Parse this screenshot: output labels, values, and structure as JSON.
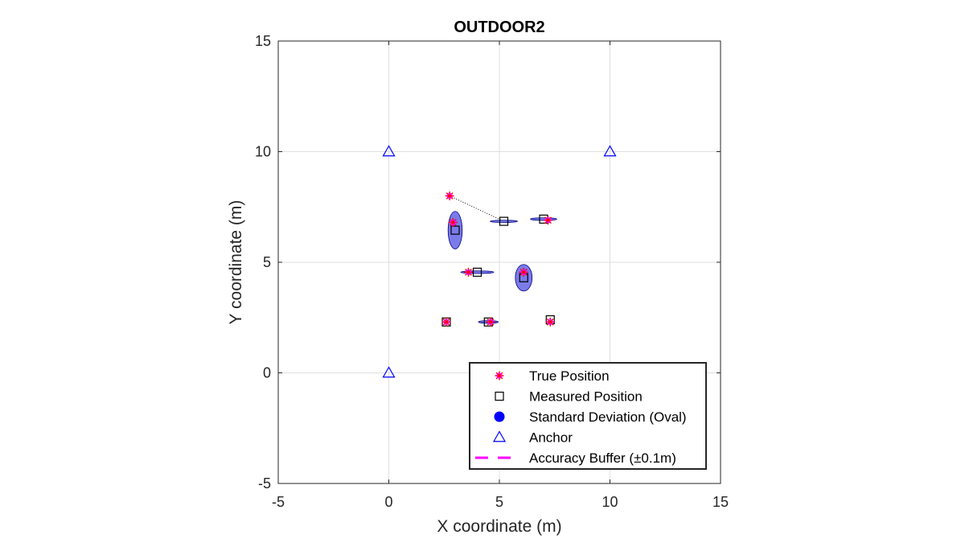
{
  "chart_data": {
    "type": "scatter",
    "title": "OUTDOOR2",
    "xlabel": "X coordinate (m)",
    "ylabel": "Y coordinate (m)",
    "xlim": [
      -5,
      15
    ],
    "ylim": [
      -5,
      15
    ],
    "xticks": [
      -5,
      0,
      5,
      10,
      15
    ],
    "yticks": [
      -5,
      0,
      5,
      10,
      15
    ],
    "grid": true,
    "legend_position": "bottom-right",
    "series": [
      {
        "name": "True Position",
        "marker": "asterisk",
        "color": "#ff0000",
        "points": [
          [
            2.75,
            8.0
          ],
          [
            2.9,
            6.8
          ],
          [
            7.2,
            6.9
          ],
          [
            3.6,
            4.55
          ],
          [
            6.1,
            4.55
          ],
          [
            2.6,
            2.3
          ],
          [
            4.6,
            2.3
          ],
          [
            7.3,
            2.3
          ]
        ]
      },
      {
        "name": "Measured Position",
        "marker": "square",
        "color": "#000000",
        "points": [
          [
            5.2,
            6.85
          ],
          [
            3.0,
            6.45
          ],
          [
            7.0,
            6.95
          ],
          [
            4.0,
            4.55
          ],
          [
            6.1,
            4.3
          ],
          [
            2.6,
            2.3
          ],
          [
            4.5,
            2.3
          ],
          [
            7.3,
            2.4
          ]
        ]
      },
      {
        "name": "Standard Deviation (Oval)",
        "marker": "ellipse",
        "color": "#0000ff",
        "fill": "#7b7bea",
        "ellipses": [
          {
            "cx": 5.2,
            "cy": 6.85,
            "rx": 0.62,
            "ry": 0.05
          },
          {
            "cx": 3.0,
            "cy": 6.45,
            "rx": 0.32,
            "ry": 0.85
          },
          {
            "cx": 7.0,
            "cy": 6.95,
            "rx": 0.6,
            "ry": 0.06
          },
          {
            "cx": 4.0,
            "cy": 4.55,
            "rx": 0.75,
            "ry": 0.06
          },
          {
            "cx": 6.1,
            "cy": 4.3,
            "rx": 0.38,
            "ry": 0.6
          },
          {
            "cx": 4.5,
            "cy": 2.3,
            "rx": 0.45,
            "ry": 0.06
          }
        ]
      },
      {
        "name": "Anchor",
        "marker": "triangle",
        "color": "#0000ff",
        "points": [
          [
            0,
            10
          ],
          [
            10,
            10
          ],
          [
            0,
            0
          ]
        ]
      },
      {
        "name": "Accuracy Buffer (±0.1m)",
        "marker": "dash",
        "color": "#ff00ff",
        "points": []
      }
    ],
    "connectors": [
      [
        [
          2.75,
          8.0
        ],
        [
          5.2,
          6.85
        ]
      ]
    ]
  }
}
